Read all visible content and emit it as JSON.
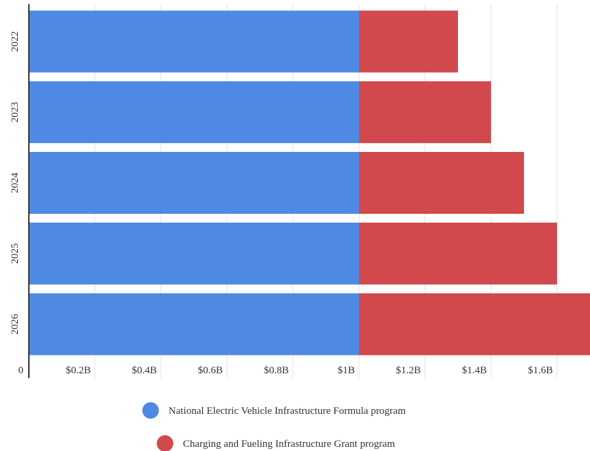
{
  "chart_data": {
    "type": "bar",
    "orientation": "horizontal",
    "stacked": true,
    "categories": [
      "2022",
      "2023",
      "2024",
      "2025",
      "2026"
    ],
    "series": [
      {
        "name": "National Electric Vehicle Infrastructure Formula program",
        "color": "#4e8ae3",
        "values": [
          1.0,
          1.0,
          1.0,
          1.0,
          1.0
        ]
      },
      {
        "name": "Charging and Fueling Infrastructure Grant program",
        "color": "#d1494c",
        "values": [
          0.3,
          0.4,
          0.5,
          0.6,
          0.7
        ]
      }
    ],
    "xlim": [
      0,
      1.7
    ],
    "x_ticks": [
      0,
      0.2,
      0.4,
      0.6,
      0.8,
      1.0,
      1.2,
      1.4,
      1.6
    ],
    "x_tick_labels": [
      "0",
      "$0.2B",
      "$0.4B",
      "$0.6B",
      "$0.8B",
      "$1B",
      "$1.2B",
      "$1.4B",
      "$1.6B"
    ],
    "grid": true,
    "legend_position": "bottom"
  }
}
